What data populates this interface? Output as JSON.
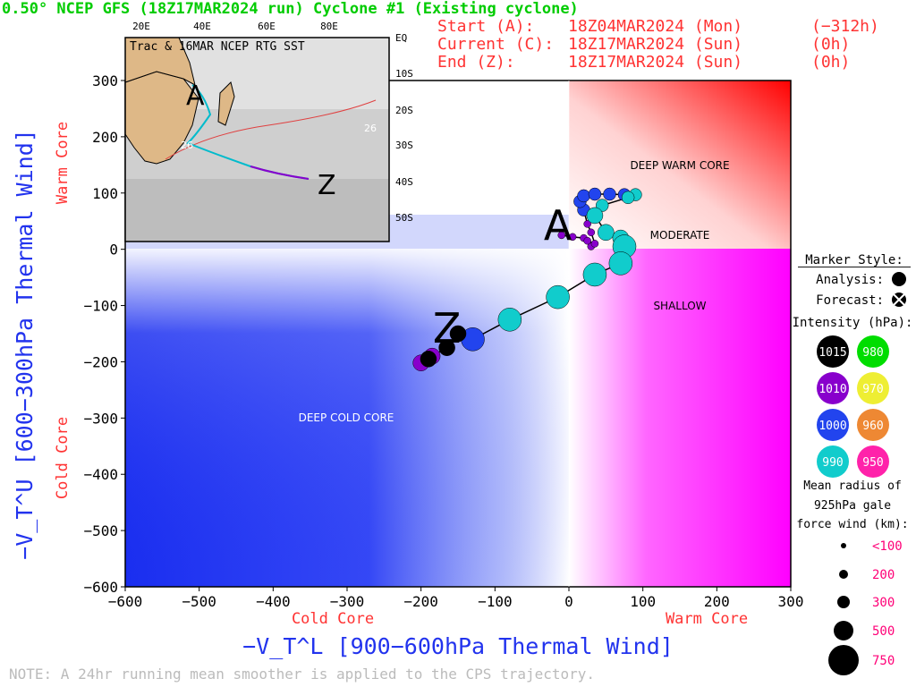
{
  "header": {
    "title": "0.50° NCEP GFS (18Z17MAR2024 run) Cyclone #1 (Existing cyclone)",
    "start_label": "Start (A):",
    "start_date": "18Z04MAR2024 (Mon)",
    "start_offset": "(−312h)",
    "current_label": "Current (C):",
    "current_date": "18Z17MAR2024 (Sun)",
    "current_offset": "(0h)",
    "end_label": "End (Z):",
    "end_date": "18Z17MAR2024 (Sun)",
    "end_offset": "(0h)"
  },
  "regions": {
    "deep_warm_core": "DEEP WARM CORE",
    "moderate": "MODERATE",
    "shallow": "SHALLOW",
    "deep_cold_core": "DEEP COLD CORE"
  },
  "inset": {
    "title": "Trac & 16MAR NCEP RTG SST",
    "lon_labels": [
      "20E",
      "40E",
      "60E",
      "80E"
    ],
    "lat_labels": [
      "EQ",
      "10S",
      "20S",
      "30S",
      "40S",
      "50S"
    ],
    "sst_label": "26"
  },
  "legend": {
    "marker_style_title": "Marker Style:",
    "analysis_label": "Analysis:",
    "forecast_label": "Forecast:",
    "intensity_title": "Intensity (hPa):",
    "intensity_levels": [
      {
        "value": "1015",
        "color": "#000000",
        "text_color": "#ffffff"
      },
      {
        "value": "980",
        "color": "#00dd00",
        "text_color": "#ffffff"
      },
      {
        "value": "1010",
        "color": "#8800cc",
        "text_color": "#ffffff"
      },
      {
        "value": "970",
        "color": "#eeee33",
        "text_color": "#ffffff"
      },
      {
        "value": "1000",
        "color": "#2244ee",
        "text_color": "#ffffff"
      },
      {
        "value": "960",
        "color": "#ee8833",
        "text_color": "#ffffff"
      },
      {
        "value": "990",
        "color": "#11cccc",
        "text_color": "#ffffff"
      },
      {
        "value": "950",
        "color": "#ff22aa",
        "text_color": "#ffffff"
      }
    ],
    "radius_title_1": "Mean radius of",
    "radius_title_2": "925hPa gale",
    "radius_title_3": "force wind (km):",
    "radius_sizes": [
      "<100",
      "200",
      "300",
      "500",
      "750"
    ]
  },
  "note": "NOTE: A 24hr running mean smoother is applied to the CPS trajectory.",
  "chart_data": {
    "type": "scatter",
    "title": "0.50° NCEP GFS (18Z17MAR2024 run) Cyclone #1 (Existing cyclone)",
    "xlabel": "−V_T^L [900−600hPa Thermal Wind]",
    "ylabel": "−V_T^U [600−300hPa Thermal Wind]",
    "x_side_labels": {
      "left": "Cold Core",
      "right": "Warm Core"
    },
    "y_side_labels": {
      "bottom": "Cold Core",
      "top": "Warm Core"
    },
    "xlim": [
      -600,
      300
    ],
    "ylim": [
      -600,
      300
    ],
    "x_ticks": [
      -600,
      -500,
      -400,
      -300,
      -200,
      -100,
      0,
      100,
      200,
      300
    ],
    "y_ticks": [
      -600,
      -500,
      -400,
      -300,
      -200,
      -100,
      0,
      100,
      200,
      300
    ],
    "x_tick_labels": [
      "−600",
      "−500",
      "−400",
      "−300",
      "−200",
      "−100",
      "0",
      "100",
      "200",
      "300"
    ],
    "y_tick_labels": [
      "−600",
      "−500",
      "−400",
      "−300",
      "−200",
      "−100",
      "0",
      "100",
      "200",
      "300"
    ],
    "start_marker": {
      "label": "A",
      "x": -15,
      "y": 30
    },
    "end_marker": {
      "label": "Z",
      "x": -165,
      "y": -150
    },
    "track": [
      {
        "x": -10,
        "y": 25,
        "hpa": 1010,
        "r": 100
      },
      {
        "x": 5,
        "y": 22,
        "hpa": 1010,
        "r": 100
      },
      {
        "x": 20,
        "y": 20,
        "hpa": 1010,
        "r": 100
      },
      {
        "x": 30,
        "y": 5,
        "hpa": 1010,
        "r": 100
      },
      {
        "x": 25,
        "y": 15,
        "hpa": 1010,
        "r": 100
      },
      {
        "x": 35,
        "y": 10,
        "hpa": 1010,
        "r": 100
      },
      {
        "x": 30,
        "y": 30,
        "hpa": 1010,
        "r": 100
      },
      {
        "x": 25,
        "y": 45,
        "hpa": 1010,
        "r": 100
      },
      {
        "x": 20,
        "y": 70,
        "hpa": 1000,
        "r": 200
      },
      {
        "x": 15,
        "y": 85,
        "hpa": 1000,
        "r": 200
      },
      {
        "x": 20,
        "y": 95,
        "hpa": 1000,
        "r": 200
      },
      {
        "x": 35,
        "y": 98,
        "hpa": 1000,
        "r": 200
      },
      {
        "x": 55,
        "y": 98,
        "hpa": 1000,
        "r": 200
      },
      {
        "x": 75,
        "y": 97,
        "hpa": 1000,
        "r": 200
      },
      {
        "x": 90,
        "y": 97,
        "hpa": 990,
        "r": 200
      },
      {
        "x": 80,
        "y": 92,
        "hpa": 990,
        "r": 200
      },
      {
        "x": 45,
        "y": 78,
        "hpa": 990,
        "r": 200
      },
      {
        "x": 35,
        "y": 60,
        "hpa": 990,
        "r": 300
      },
      {
        "x": 50,
        "y": 30,
        "hpa": 990,
        "r": 300
      },
      {
        "x": 70,
        "y": 20,
        "hpa": 990,
        "r": 300
      },
      {
        "x": 75,
        "y": 5,
        "hpa": 990,
        "r": 500
      },
      {
        "x": 70,
        "y": -25,
        "hpa": 990,
        "r": 500
      },
      {
        "x": 35,
        "y": -45,
        "hpa": 990,
        "r": 500
      },
      {
        "x": -15,
        "y": -85,
        "hpa": 990,
        "r": 500
      },
      {
        "x": -80,
        "y": -125,
        "hpa": 990,
        "r": 500
      },
      {
        "x": -130,
        "y": -160,
        "hpa": 1000,
        "r": 500
      },
      {
        "x": -150,
        "y": -150,
        "hpa": 1015,
        "r": 300
      },
      {
        "x": -165,
        "y": -175,
        "hpa": 1015,
        "r": 300
      },
      {
        "x": -185,
        "y": -190,
        "hpa": 1010,
        "r": 300
      },
      {
        "x": -200,
        "y": -202,
        "hpa": 1010,
        "r": 300
      },
      {
        "x": -190,
        "y": -195,
        "hpa": 1015,
        "r": 300
      }
    ]
  }
}
